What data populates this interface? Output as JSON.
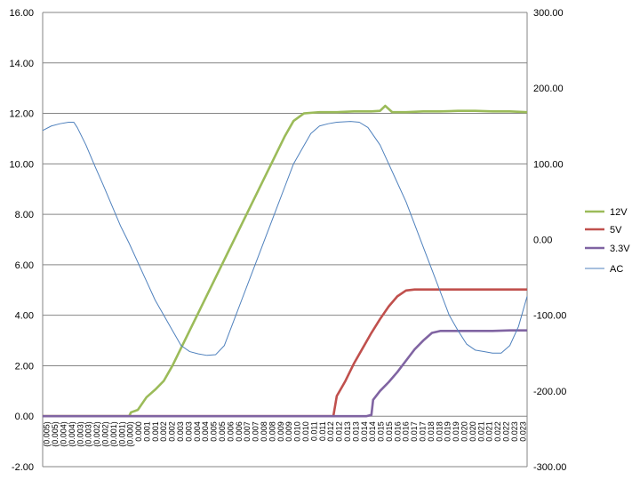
{
  "chart_data": {
    "type": "line",
    "title": "",
    "xlabel": "",
    "ylabel": "",
    "grid": true,
    "legend_position": "right",
    "y_left": {
      "min": -2,
      "max": 16,
      "step": 2,
      "tick_labels": [
        "-2.00",
        "0.00",
        "2.00",
        "4.00",
        "6.00",
        "8.00",
        "10.00",
        "12.00",
        "14.00",
        "16.00"
      ]
    },
    "y_right": {
      "min": -300,
      "max": 300,
      "step": 100,
      "tick_labels": [
        "-300.00",
        "-200.00",
        "-100.00",
        "0.00",
        "100.00",
        "200.00",
        "300.00"
      ]
    },
    "x_range": [
      -0.005,
      0.023
    ],
    "x_tick_labels": [
      "(0.005)",
      "(0.005)",
      "(0.004)",
      "(0.004)",
      "(0.003)",
      "(0.003)",
      "(0.002)",
      "(0.002)",
      "(0.001)",
      "(0.001)",
      "(0.000)",
      "0.000",
      "0.001",
      "0.001",
      "0.002",
      "0.002",
      "0.003",
      "0.003",
      "0.004",
      "0.004",
      "0.005",
      "0.005",
      "0.006",
      "0.006",
      "0.007",
      "0.007",
      "0.008",
      "0.008",
      "0.009",
      "0.009",
      "0.010",
      "0.010",
      "0.011",
      "0.011",
      "0.012",
      "0.012",
      "0.013",
      "0.013",
      "0.014",
      "0.014",
      "0.015",
      "0.015",
      "0.016",
      "0.016",
      "0.017",
      "0.017",
      "0.018",
      "0.018",
      "0.019",
      "0.019",
      "0.020",
      "0.020",
      "0.021",
      "0.021",
      "0.022",
      "0.022",
      "0.023",
      "0.023"
    ],
    "series": [
      {
        "name": "12V",
        "axis": "left",
        "color": "#9bbb59",
        "points": [
          [
            -0.005,
            0
          ],
          [
            0,
            0
          ],
          [
            0.0001,
            0.15
          ],
          [
            0.0005,
            0.25
          ],
          [
            0.001,
            0.75
          ],
          [
            0.0015,
            1.05
          ],
          [
            0.002,
            1.4
          ],
          [
            0.0025,
            2.0
          ],
          [
            0.003,
            2.7
          ],
          [
            0.0035,
            3.4
          ],
          [
            0.004,
            4.1
          ],
          [
            0.0045,
            4.8
          ],
          [
            0.005,
            5.5
          ],
          [
            0.0055,
            6.2
          ],
          [
            0.006,
            6.9
          ],
          [
            0.0065,
            7.6
          ],
          [
            0.007,
            8.3
          ],
          [
            0.0075,
            9.0
          ],
          [
            0.008,
            9.7
          ],
          [
            0.0085,
            10.4
          ],
          [
            0.009,
            11.1
          ],
          [
            0.0095,
            11.7
          ],
          [
            0.0101,
            12.0
          ],
          [
            0.011,
            12.05
          ],
          [
            0.012,
            12.05
          ],
          [
            0.013,
            12.08
          ],
          [
            0.014,
            12.08
          ],
          [
            0.0145,
            12.1
          ],
          [
            0.0148,
            12.3
          ],
          [
            0.0152,
            12.05
          ],
          [
            0.016,
            12.05
          ],
          [
            0.017,
            12.08
          ],
          [
            0.018,
            12.08
          ],
          [
            0.019,
            12.1
          ],
          [
            0.02,
            12.1
          ],
          [
            0.021,
            12.08
          ],
          [
            0.022,
            12.08
          ],
          [
            0.023,
            12.05
          ]
        ]
      },
      {
        "name": "5V",
        "axis": "left",
        "color": "#c0504d",
        "points": [
          [
            -0.005,
            0
          ],
          [
            0.0118,
            0
          ],
          [
            0.012,
            0.8
          ],
          [
            0.0125,
            1.4
          ],
          [
            0.013,
            2.1
          ],
          [
            0.0135,
            2.7
          ],
          [
            0.014,
            3.3
          ],
          [
            0.0145,
            3.85
          ],
          [
            0.015,
            4.35
          ],
          [
            0.0155,
            4.75
          ],
          [
            0.016,
            4.98
          ],
          [
            0.0165,
            5.02
          ],
          [
            0.017,
            5.02
          ],
          [
            0.018,
            5.02
          ],
          [
            0.019,
            5.02
          ],
          [
            0.02,
            5.02
          ],
          [
            0.021,
            5.02
          ],
          [
            0.022,
            5.02
          ],
          [
            0.023,
            5.02
          ]
        ]
      },
      {
        "name": "3.3V",
        "axis": "left",
        "color": "#8064a2",
        "points": [
          [
            -0.005,
            0
          ],
          [
            0.0137,
            0
          ],
          [
            0.014,
            0.05
          ],
          [
            0.0141,
            0.65
          ],
          [
            0.0145,
            1.0
          ],
          [
            0.015,
            1.35
          ],
          [
            0.0155,
            1.75
          ],
          [
            0.016,
            2.2
          ],
          [
            0.0165,
            2.65
          ],
          [
            0.017,
            3.0
          ],
          [
            0.0175,
            3.3
          ],
          [
            0.018,
            3.38
          ],
          [
            0.019,
            3.38
          ],
          [
            0.02,
            3.38
          ],
          [
            0.021,
            3.38
          ],
          [
            0.022,
            3.4
          ],
          [
            0.023,
            3.4
          ]
        ]
      },
      {
        "name": "AC",
        "axis": "right",
        "color": "#4f81bd",
        "points": [
          [
            -0.005,
            144
          ],
          [
            -0.0045,
            150
          ],
          [
            -0.004,
            153
          ],
          [
            -0.0035,
            155
          ],
          [
            -0.0032,
            155
          ],
          [
            -0.003,
            148
          ],
          [
            -0.0025,
            125
          ],
          [
            -0.002,
            98
          ],
          [
            -0.0015,
            72
          ],
          [
            -0.001,
            45
          ],
          [
            -0.0005,
            18
          ],
          [
            0,
            -5
          ],
          [
            0.0005,
            -30
          ],
          [
            0.001,
            -55
          ],
          [
            0.0015,
            -80
          ],
          [
            0.002,
            -100
          ],
          [
            0.0025,
            -120
          ],
          [
            0.003,
            -140
          ],
          [
            0.0035,
            -148
          ],
          [
            0.004,
            -151
          ],
          [
            0.0045,
            -153
          ],
          [
            0.005,
            -152
          ],
          [
            0.0055,
            -140
          ],
          [
            0.006,
            -110
          ],
          [
            0.0065,
            -80
          ],
          [
            0.007,
            -50
          ],
          [
            0.0075,
            -20
          ],
          [
            0.008,
            10
          ],
          [
            0.0085,
            40
          ],
          [
            0.009,
            70
          ],
          [
            0.0095,
            100
          ],
          [
            0.01,
            120
          ],
          [
            0.0105,
            140
          ],
          [
            0.011,
            150
          ],
          [
            0.0115,
            153
          ],
          [
            0.012,
            155
          ],
          [
            0.0128,
            156
          ],
          [
            0.0133,
            155
          ],
          [
            0.0138,
            148
          ],
          [
            0.0145,
            125
          ],
          [
            0.015,
            100
          ],
          [
            0.0155,
            75
          ],
          [
            0.016,
            50
          ],
          [
            0.0165,
            20
          ],
          [
            0.017,
            -10
          ],
          [
            0.0175,
            -40
          ],
          [
            0.018,
            -70
          ],
          [
            0.0185,
            -100
          ],
          [
            0.019,
            -120
          ],
          [
            0.0195,
            -138
          ],
          [
            0.02,
            -146
          ],
          [
            0.0205,
            -148
          ],
          [
            0.021,
            -150
          ],
          [
            0.0215,
            -150
          ],
          [
            0.022,
            -140
          ],
          [
            0.0225,
            -115
          ],
          [
            0.023,
            -75
          ]
        ]
      }
    ]
  }
}
